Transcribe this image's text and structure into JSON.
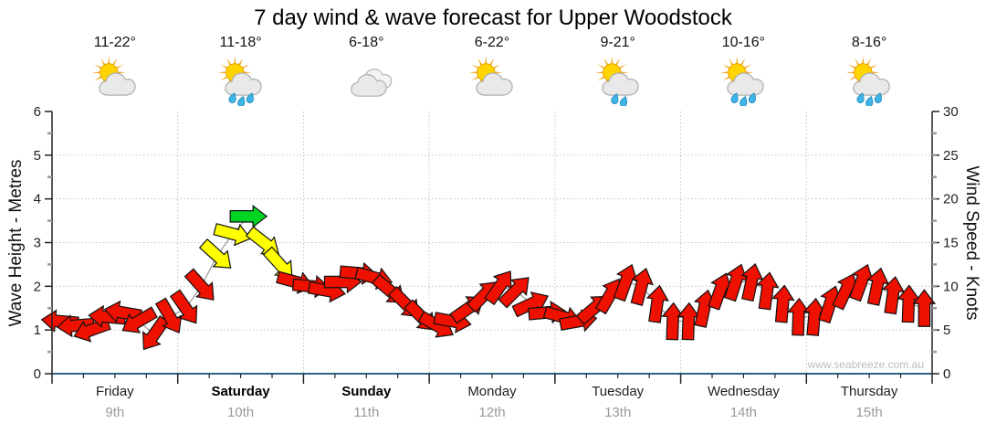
{
  "title": "7 day wind & wave forecast for Upper Woodstock",
  "watermark": "www.seabreeze.com.au",
  "colors": {
    "arrow_red": "#ee1100",
    "arrow_yellow": "#ffff00",
    "arrow_green": "#00d321",
    "arrow_outline": "#111111",
    "wind_trace_line": "#9a9a9a",
    "gridline": "#c4c4c4",
    "axis_line": "#222222",
    "bottom_axis_line": "#2e6088",
    "date_text": "#999999",
    "watermark_text": "#bcbcbc",
    "rain_drop": "#3fb4e6",
    "sun": "#ffd400",
    "cloud": "#e9e9e9"
  },
  "chart_data": {
    "type": "line",
    "title": "7 day wind & wave forecast for Upper Woodstock",
    "legend": "none",
    "grid": "dotted horizontal lines each metre (1-5), dotted vertical lines at day boundaries",
    "left_axis": {
      "label": "Wave Height - Metres",
      "min": 0,
      "max": 6,
      "major_ticks": [
        0,
        1,
        2,
        3,
        4,
        5,
        6
      ],
      "minor_tick_step": 0.5
    },
    "right_axis": {
      "label": "Wind Speed - Knots",
      "min": 0,
      "max": 30,
      "major_ticks": [
        0,
        5,
        10,
        15,
        20,
        25,
        30
      ],
      "minor_tick_step": 2.5
    },
    "days": [
      {
        "name": "Friday",
        "date": "9th",
        "temp": "11-22°",
        "icon": "sun-cloud",
        "weekend": false
      },
      {
        "name": "Saturday",
        "date": "10th",
        "temp": "11-18°",
        "icon": "sun-cloud-rain-3",
        "weekend": true
      },
      {
        "name": "Sunday",
        "date": "11th",
        "temp": "6-18°",
        "icon": "clouds",
        "weekend": true
      },
      {
        "name": "Monday",
        "date": "12th",
        "temp": "6-22°",
        "icon": "sun-cloud",
        "weekend": false
      },
      {
        "name": "Tuesday",
        "date": "13th",
        "temp": "9-21°",
        "icon": "sun-cloud-rain-2",
        "weekend": false
      },
      {
        "name": "Wednesday",
        "date": "14th",
        "temp": "10-16°",
        "icon": "sun-cloud-rain-3",
        "weekend": false
      },
      {
        "name": "Thursday",
        "date": "15th",
        "temp": "8-16°",
        "icon": "sun-cloud-rain-3",
        "weekend": false
      }
    ],
    "wind_arrows": {
      "units": "knots",
      "points_per_day": 8,
      "point_format": "[speed_knots, direction_screen_degrees(0=pointing right,90=down,180=left,270=up), color]",
      "per_day": [
        {
          "day": "Friday",
          "points": [
            [
              6,
              185,
              "red"
            ],
            [
              5.5,
              175,
              "red"
            ],
            [
              5,
              160,
              "red"
            ],
            [
              6.5,
              185,
              "red"
            ],
            [
              7,
              190,
              "red"
            ],
            [
              6,
              150,
              "red"
            ],
            [
              4.5,
              125,
              "red"
            ],
            [
              6.5,
              60,
              "red"
            ]
          ]
        },
        {
          "day": "Saturday",
          "points": [
            [
              7.5,
              55,
              "red"
            ],
            [
              10,
              48,
              "red"
            ],
            [
              13.5,
              42,
              "yellow"
            ],
            [
              16,
              15,
              "yellow"
            ],
            [
              18,
              0,
              "green"
            ],
            [
              15,
              38,
              "yellow"
            ],
            [
              12.5,
              48,
              "yellow"
            ],
            [
              10.5,
              15,
              "red"
            ]
          ]
        },
        {
          "day": "Sunday",
          "points": [
            [
              10,
              5,
              "red"
            ],
            [
              9.5,
              10,
              "red"
            ],
            [
              10.5,
              0,
              "red"
            ],
            [
              11.5,
              5,
              "red"
            ],
            [
              11,
              15,
              "red"
            ],
            [
              9.5,
              40,
              "red"
            ],
            [
              8,
              45,
              "red"
            ],
            [
              6.5,
              45,
              "red"
            ]
          ]
        },
        {
          "day": "Monday",
          "points": [
            [
              5.5,
              30,
              "red"
            ],
            [
              6,
              10,
              "red"
            ],
            [
              7.5,
              325,
              "red"
            ],
            [
              9,
              315,
              "red"
            ],
            [
              10,
              305,
              "red"
            ],
            [
              9.5,
              315,
              "red"
            ],
            [
              8,
              335,
              "red"
            ],
            [
              7,
              355,
              "red"
            ]
          ]
        },
        {
          "day": "Tuesday",
          "points": [
            [
              6.5,
              15,
              "red"
            ],
            [
              6,
              350,
              "red"
            ],
            [
              7.5,
              320,
              "red"
            ],
            [
              9,
              300,
              "red"
            ],
            [
              10.5,
              290,
              "red"
            ],
            [
              10,
              285,
              "red"
            ],
            [
              8,
              278,
              "red"
            ],
            [
              6,
              272,
              "red"
            ]
          ]
        },
        {
          "day": "Wednesday",
          "points": [
            [
              6,
              272,
              "red"
            ],
            [
              7.5,
              282,
              "red"
            ],
            [
              9.5,
              290,
              "red"
            ],
            [
              10.5,
              288,
              "red"
            ],
            [
              10.5,
              282,
              "red"
            ],
            [
              9.5,
              278,
              "red"
            ],
            [
              8,
              275,
              "red"
            ],
            [
              6.5,
              272,
              "red"
            ]
          ]
        },
        {
          "day": "Thursday",
          "points": [
            [
              6.5,
              275,
              "red"
            ],
            [
              8,
              288,
              "red"
            ],
            [
              9.5,
              295,
              "red"
            ],
            [
              10.5,
              290,
              "red"
            ],
            [
              10,
              282,
              "red"
            ],
            [
              9,
              278,
              "red"
            ],
            [
              8,
              272,
              "red"
            ],
            [
              7.5,
              270,
              "red"
            ]
          ]
        }
      ]
    }
  }
}
